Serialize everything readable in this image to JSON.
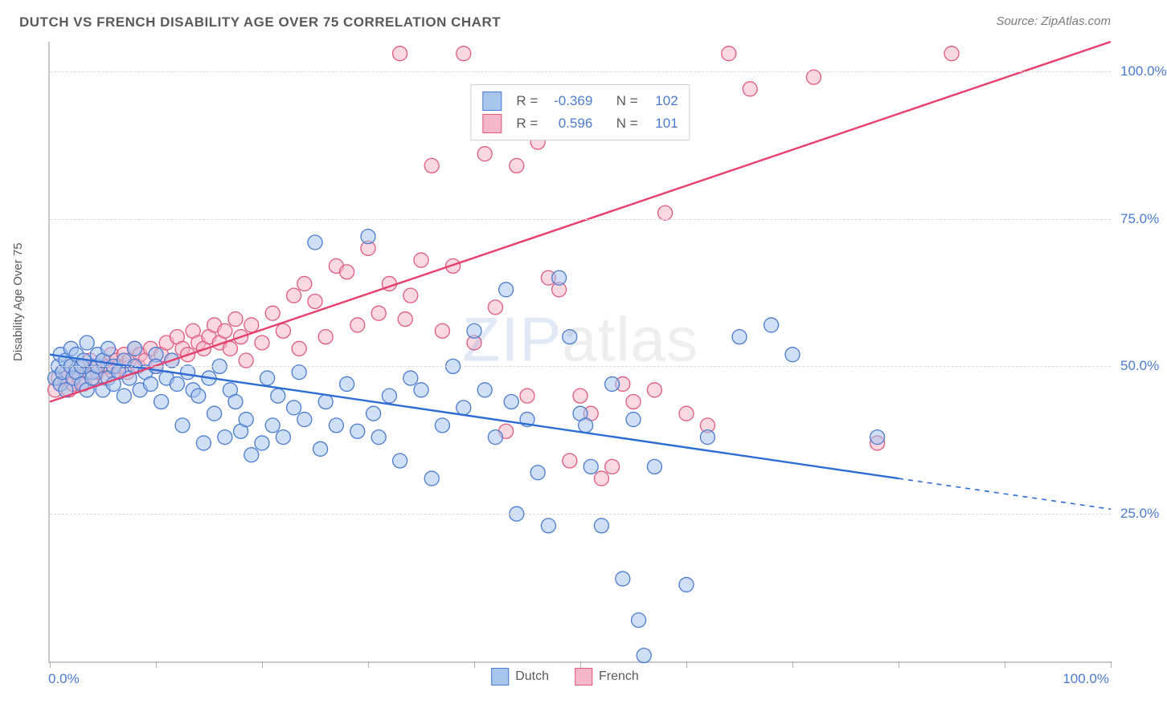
{
  "title": "DUTCH VS FRENCH DISABILITY AGE OVER 75 CORRELATION CHART",
  "source": "Source: ZipAtlas.com",
  "ylabel": "Disability Age Over 75",
  "watermark_a": "ZIP",
  "watermark_b": "atlas",
  "chart": {
    "type": "scatter-with-regression",
    "xlim": [
      0,
      100
    ],
    "ylim": [
      0,
      105
    ],
    "yticks": [
      25,
      50,
      75,
      100
    ],
    "ytick_labels": [
      "25.0%",
      "50.0%",
      "75.0%",
      "100.0%"
    ],
    "xtick_positions": [
      0,
      10,
      20,
      30,
      40,
      50,
      60,
      70,
      80,
      90,
      100
    ],
    "xlabel_start": "0.0%",
    "xlabel_end": "100.0%",
    "background_color": "#ffffff",
    "grid_color": "#d8d8d8",
    "axis_color": "#c8c8c8",
    "label_color": "#4a7bd0",
    "marker_radius": 9,
    "marker_opacity": 0.55,
    "marker_stroke_width": 1.3,
    "line_width": 2.4,
    "series": [
      {
        "name": "Dutch",
        "fill": "#a8c5ec",
        "stroke": "#4a7bd0",
        "line_color": "#2d6cd4",
        "R": "-0.369",
        "N": "102",
        "regression": {
          "x1": 0,
          "y1": 52,
          "x2": 80,
          "y2": 31,
          "extend_x2": 100,
          "extend_y2": 25.8
        },
        "points": [
          [
            0.5,
            48
          ],
          [
            0.8,
            50
          ],
          [
            1,
            52
          ],
          [
            1,
            47
          ],
          [
            1.2,
            49
          ],
          [
            1.5,
            51
          ],
          [
            1.5,
            46
          ],
          [
            2,
            50
          ],
          [
            2,
            53
          ],
          [
            2.2,
            48
          ],
          [
            2.5,
            49
          ],
          [
            2.5,
            52
          ],
          [
            3,
            50
          ],
          [
            3,
            47
          ],
          [
            3.2,
            51
          ],
          [
            3.5,
            46
          ],
          [
            3.5,
            54
          ],
          [
            4,
            49
          ],
          [
            4,
            48
          ],
          [
            4.5,
            50
          ],
          [
            4.5,
            52
          ],
          [
            5,
            51
          ],
          [
            5,
            46
          ],
          [
            5.5,
            48
          ],
          [
            5.5,
            53
          ],
          [
            6,
            50
          ],
          [
            6,
            47
          ],
          [
            6.5,
            49
          ],
          [
            7,
            51
          ],
          [
            7,
            45
          ],
          [
            7.5,
            48
          ],
          [
            8,
            50
          ],
          [
            8,
            53
          ],
          [
            8.5,
            46
          ],
          [
            9,
            49
          ],
          [
            9.5,
            47
          ],
          [
            10,
            52
          ],
          [
            10,
            50
          ],
          [
            10.5,
            44
          ],
          [
            11,
            48
          ],
          [
            11.5,
            51
          ],
          [
            12,
            47
          ],
          [
            12.5,
            40
          ],
          [
            13,
            49
          ],
          [
            13.5,
            46
          ],
          [
            14,
            45
          ],
          [
            14.5,
            37
          ],
          [
            15,
            48
          ],
          [
            15.5,
            42
          ],
          [
            16,
            50
          ],
          [
            16.5,
            38
          ],
          [
            17,
            46
          ],
          [
            17.5,
            44
          ],
          [
            18,
            39
          ],
          [
            18.5,
            41
          ],
          [
            19,
            35
          ],
          [
            20,
            37
          ],
          [
            20.5,
            48
          ],
          [
            21,
            40
          ],
          [
            21.5,
            45
          ],
          [
            22,
            38
          ],
          [
            23,
            43
          ],
          [
            23.5,
            49
          ],
          [
            24,
            41
          ],
          [
            25,
            71
          ],
          [
            25.5,
            36
          ],
          [
            26,
            44
          ],
          [
            27,
            40
          ],
          [
            28,
            47
          ],
          [
            29,
            39
          ],
          [
            30,
            72
          ],
          [
            30.5,
            42
          ],
          [
            31,
            38
          ],
          [
            32,
            45
          ],
          [
            33,
            34
          ],
          [
            34,
            48
          ],
          [
            35,
            46
          ],
          [
            36,
            31
          ],
          [
            37,
            40
          ],
          [
            38,
            50
          ],
          [
            39,
            43
          ],
          [
            40,
            56
          ],
          [
            41,
            46
          ],
          [
            42,
            38
          ],
          [
            43,
            63
          ],
          [
            43.5,
            44
          ],
          [
            44,
            25
          ],
          [
            45,
            41
          ],
          [
            46,
            32
          ],
          [
            47,
            23
          ],
          [
            48,
            65
          ],
          [
            49,
            55
          ],
          [
            50,
            42
          ],
          [
            50.5,
            40
          ],
          [
            51,
            33
          ],
          [
            52,
            23
          ],
          [
            53,
            47
          ],
          [
            54,
            14
          ],
          [
            55,
            41
          ],
          [
            55.5,
            7
          ],
          [
            56,
            1
          ],
          [
            57,
            33
          ],
          [
            60,
            13
          ],
          [
            62,
            38
          ],
          [
            65,
            55
          ],
          [
            68,
            57
          ],
          [
            70,
            52
          ],
          [
            78,
            38
          ]
        ]
      },
      {
        "name": "French",
        "fill": "#f4b8c8",
        "stroke": "#e05a7d",
        "line_color": "#e83e6b",
        "R": "0.596",
        "N": "101",
        "regression": {
          "x1": 0,
          "y1": 44,
          "x2": 100,
          "y2": 105
        },
        "points": [
          [
            0.5,
            46
          ],
          [
            0.8,
            48
          ],
          [
            1,
            47
          ],
          [
            1.2,
            49
          ],
          [
            1.5,
            48
          ],
          [
            1.8,
            46
          ],
          [
            2,
            50
          ],
          [
            2.2,
            47
          ],
          [
            2.5,
            49
          ],
          [
            2.8,
            48
          ],
          [
            3,
            50
          ],
          [
            3.2,
            47
          ],
          [
            3.5,
            49
          ],
          [
            3.8,
            51
          ],
          [
            4,
            48
          ],
          [
            4.3,
            50
          ],
          [
            4.5,
            49
          ],
          [
            5,
            51
          ],
          [
            5.2,
            48
          ],
          [
            5.5,
            50
          ],
          [
            5.8,
            52
          ],
          [
            6,
            49
          ],
          [
            6.3,
            51
          ],
          [
            6.5,
            50
          ],
          [
            7,
            52
          ],
          [
            7.3,
            49
          ],
          [
            7.5,
            51
          ],
          [
            8,
            53
          ],
          [
            8.3,
            50
          ],
          [
            8.5,
            52
          ],
          [
            9,
            51
          ],
          [
            9.5,
            53
          ],
          [
            10,
            50
          ],
          [
            10.5,
            52
          ],
          [
            11,
            54
          ],
          [
            11.5,
            51
          ],
          [
            12,
            55
          ],
          [
            12.5,
            53
          ],
          [
            13,
            52
          ],
          [
            13.5,
            56
          ],
          [
            14,
            54
          ],
          [
            14.5,
            53
          ],
          [
            15,
            55
          ],
          [
            15.5,
            57
          ],
          [
            16,
            54
          ],
          [
            16.5,
            56
          ],
          [
            17,
            53
          ],
          [
            17.5,
            58
          ],
          [
            18,
            55
          ],
          [
            18.5,
            51
          ],
          [
            19,
            57
          ],
          [
            20,
            54
          ],
          [
            21,
            59
          ],
          [
            22,
            56
          ],
          [
            23,
            62
          ],
          [
            23.5,
            53
          ],
          [
            24,
            64
          ],
          [
            25,
            61
          ],
          [
            26,
            55
          ],
          [
            27,
            67
          ],
          [
            28,
            66
          ],
          [
            29,
            57
          ],
          [
            30,
            70
          ],
          [
            31,
            59
          ],
          [
            32,
            64
          ],
          [
            33,
            103
          ],
          [
            33.5,
            58
          ],
          [
            34,
            62
          ],
          [
            35,
            68
          ],
          [
            36,
            84
          ],
          [
            37,
            56
          ],
          [
            38,
            67
          ],
          [
            39,
            103
          ],
          [
            40,
            54
          ],
          [
            41,
            86
          ],
          [
            42,
            60
          ],
          [
            43,
            39
          ],
          [
            44,
            84
          ],
          [
            45,
            45
          ],
          [
            46,
            88
          ],
          [
            47,
            65
          ],
          [
            48,
            63
          ],
          [
            49,
            34
          ],
          [
            50,
            45
          ],
          [
            51,
            42
          ],
          [
            52,
            31
          ],
          [
            53,
            33
          ],
          [
            54,
            47
          ],
          [
            55,
            44
          ],
          [
            57,
            46
          ],
          [
            58,
            76
          ],
          [
            60,
            42
          ],
          [
            62,
            40
          ],
          [
            64,
            103
          ],
          [
            66,
            97
          ],
          [
            72,
            99
          ],
          [
            78,
            37
          ],
          [
            85,
            103
          ]
        ]
      }
    ],
    "bottom_legend": [
      {
        "label": "Dutch",
        "fill": "#a8c5ec",
        "stroke": "#4a7bd0"
      },
      {
        "label": "French",
        "fill": "#f4b8c8",
        "stroke": "#e05a7d"
      }
    ]
  }
}
